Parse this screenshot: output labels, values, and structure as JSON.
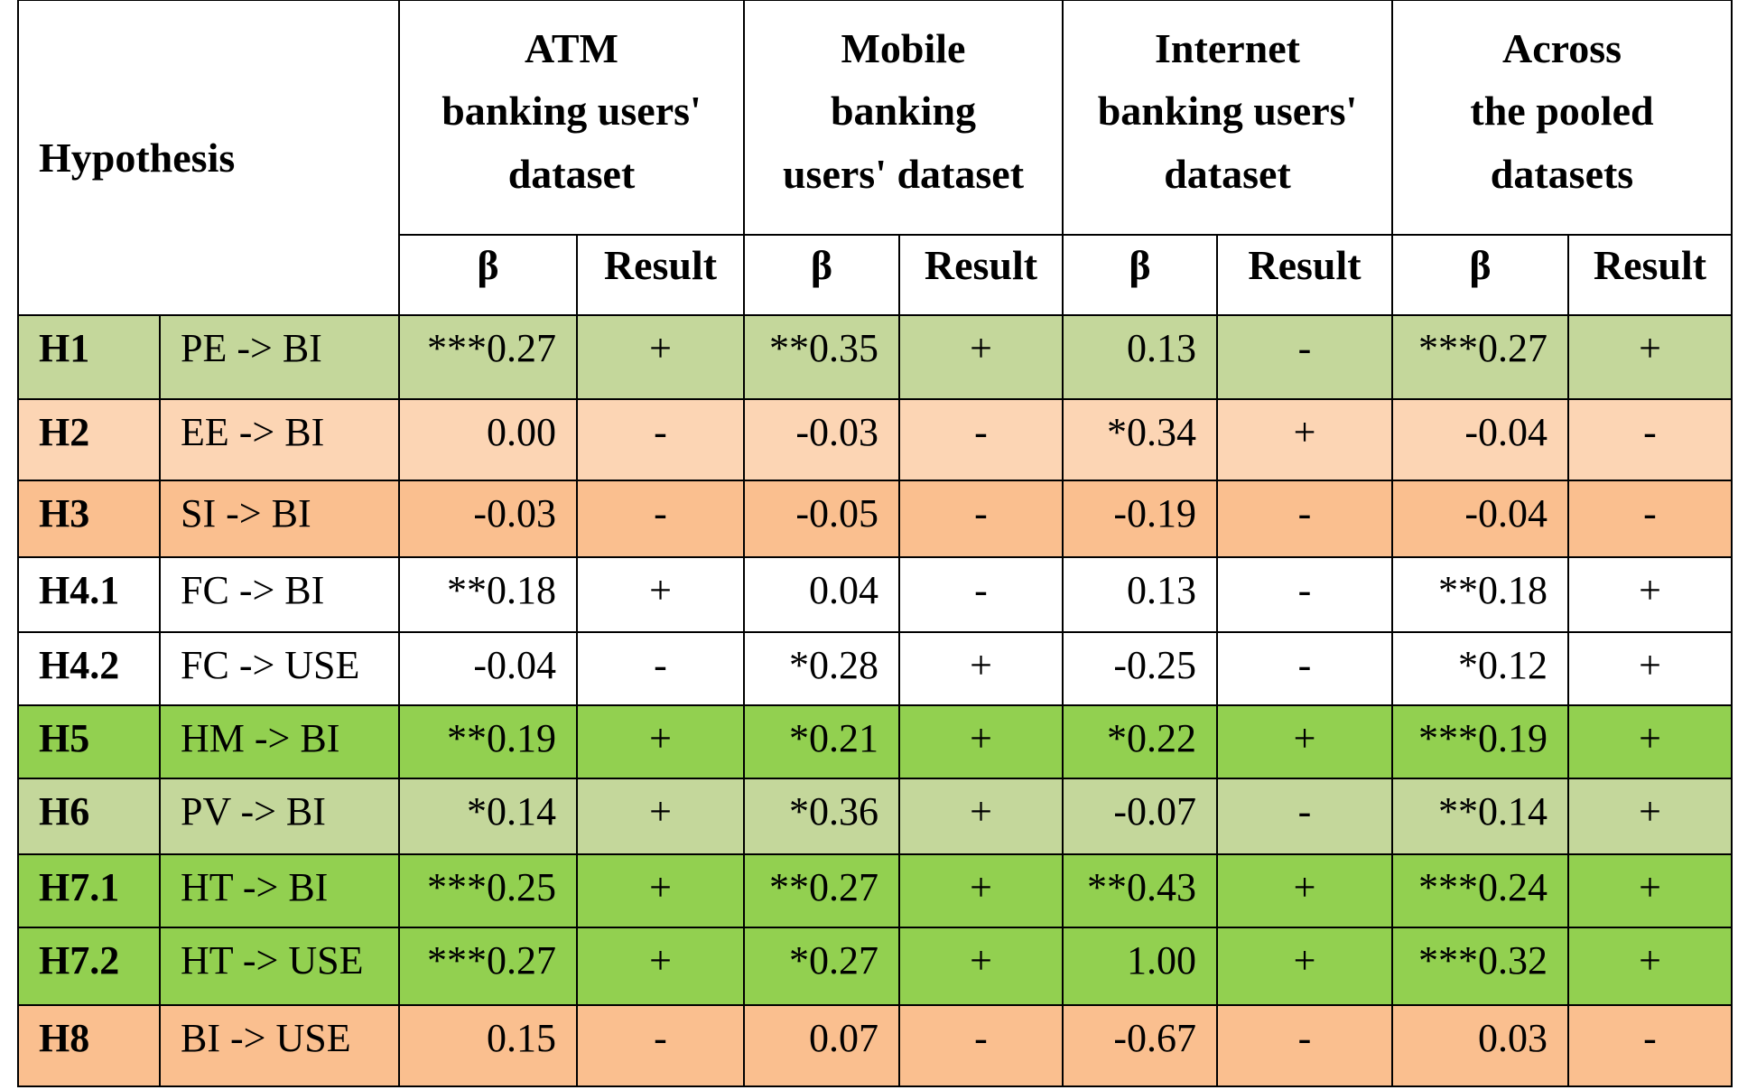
{
  "colors": {
    "light_green": "#C4D79B",
    "bright_green": "#92D050",
    "light_peach": "#FCD5B4",
    "peach": "#FABF8F",
    "white": "#FFFFFF",
    "border": "#000000"
  },
  "header": {
    "hypothesis": "Hypothesis",
    "groups": [
      {
        "lines": [
          "ATM",
          "banking users'",
          "dataset"
        ]
      },
      {
        "lines": [
          "Mobile",
          "banking",
          "users' dataset"
        ]
      },
      {
        "lines": [
          "Internet",
          "banking users'",
          "dataset"
        ]
      },
      {
        "lines": [
          "Across",
          "the pooled",
          "datasets"
        ]
      }
    ],
    "beta_label": "β",
    "result_label": "Result"
  },
  "rows": [
    {
      "id": "H1",
      "path": "PE -> BI",
      "color": "light_green",
      "atm": [
        "***0.27",
        "+"
      ],
      "mobile": [
        "**0.35",
        "+"
      ],
      "internet": [
        "0.13",
        "-"
      ],
      "pooled": [
        "***0.27",
        "+"
      ]
    },
    {
      "id": "H2",
      "path": "EE -> BI",
      "color": "light_peach",
      "atm": [
        "0.00",
        "-"
      ],
      "mobile": [
        "-0.03",
        "-"
      ],
      "internet": [
        "*0.34",
        "+"
      ],
      "pooled": [
        "-0.04",
        "-"
      ]
    },
    {
      "id": "H3",
      "path": "SI -> BI",
      "color": "peach",
      "atm": [
        "-0.03",
        "-"
      ],
      "mobile": [
        "-0.05",
        "-"
      ],
      "internet": [
        "-0.19",
        "-"
      ],
      "pooled": [
        "-0.04",
        "-"
      ]
    },
    {
      "id": "H4.1",
      "path": "FC -> BI",
      "color": "white",
      "atm": [
        "**0.18",
        "+"
      ],
      "mobile": [
        "0.04",
        "-"
      ],
      "internet": [
        "0.13",
        "-"
      ],
      "pooled": [
        "**0.18",
        "+"
      ]
    },
    {
      "id": "H4.2",
      "path": "FC -> USE",
      "color": "white",
      "atm": [
        "-0.04",
        "-"
      ],
      "mobile": [
        "*0.28",
        "+"
      ],
      "internet": [
        "-0.25",
        "-"
      ],
      "pooled": [
        "*0.12",
        "+"
      ]
    },
    {
      "id": "H5",
      "path": "HM -> BI",
      "color": "bright_green",
      "atm": [
        "**0.19",
        "+"
      ],
      "mobile": [
        "*0.21",
        "+"
      ],
      "internet": [
        "*0.22",
        "+"
      ],
      "pooled": [
        "***0.19",
        "+"
      ]
    },
    {
      "id": "H6",
      "path": "PV -> BI",
      "color": "light_green",
      "atm": [
        "*0.14",
        "+"
      ],
      "mobile": [
        "*0.36",
        "+"
      ],
      "internet": [
        "-0.07",
        "-"
      ],
      "pooled": [
        "**0.14",
        "+"
      ]
    },
    {
      "id": "H7.1",
      "path": "HT -> BI",
      "color": "bright_green",
      "atm": [
        "***0.25",
        "+"
      ],
      "mobile": [
        "**0.27",
        "+"
      ],
      "internet": [
        "**0.43",
        "+"
      ],
      "pooled": [
        "***0.24",
        "+"
      ]
    },
    {
      "id": "H7.2",
      "path": "HT -> USE",
      "color": "bright_green",
      "atm": [
        "***0.27",
        "+"
      ],
      "mobile": [
        "*0.27",
        "+"
      ],
      "internet": [
        "1.00",
        "+"
      ],
      "pooled": [
        "***0.32",
        "+"
      ]
    },
    {
      "id": "H8",
      "path": "BI -> USE",
      "color": "peach",
      "atm": [
        "0.15",
        "-"
      ],
      "mobile": [
        "0.07",
        "-"
      ],
      "internet": [
        "-0.67",
        "-"
      ],
      "pooled": [
        "0.03",
        "-"
      ]
    }
  ]
}
